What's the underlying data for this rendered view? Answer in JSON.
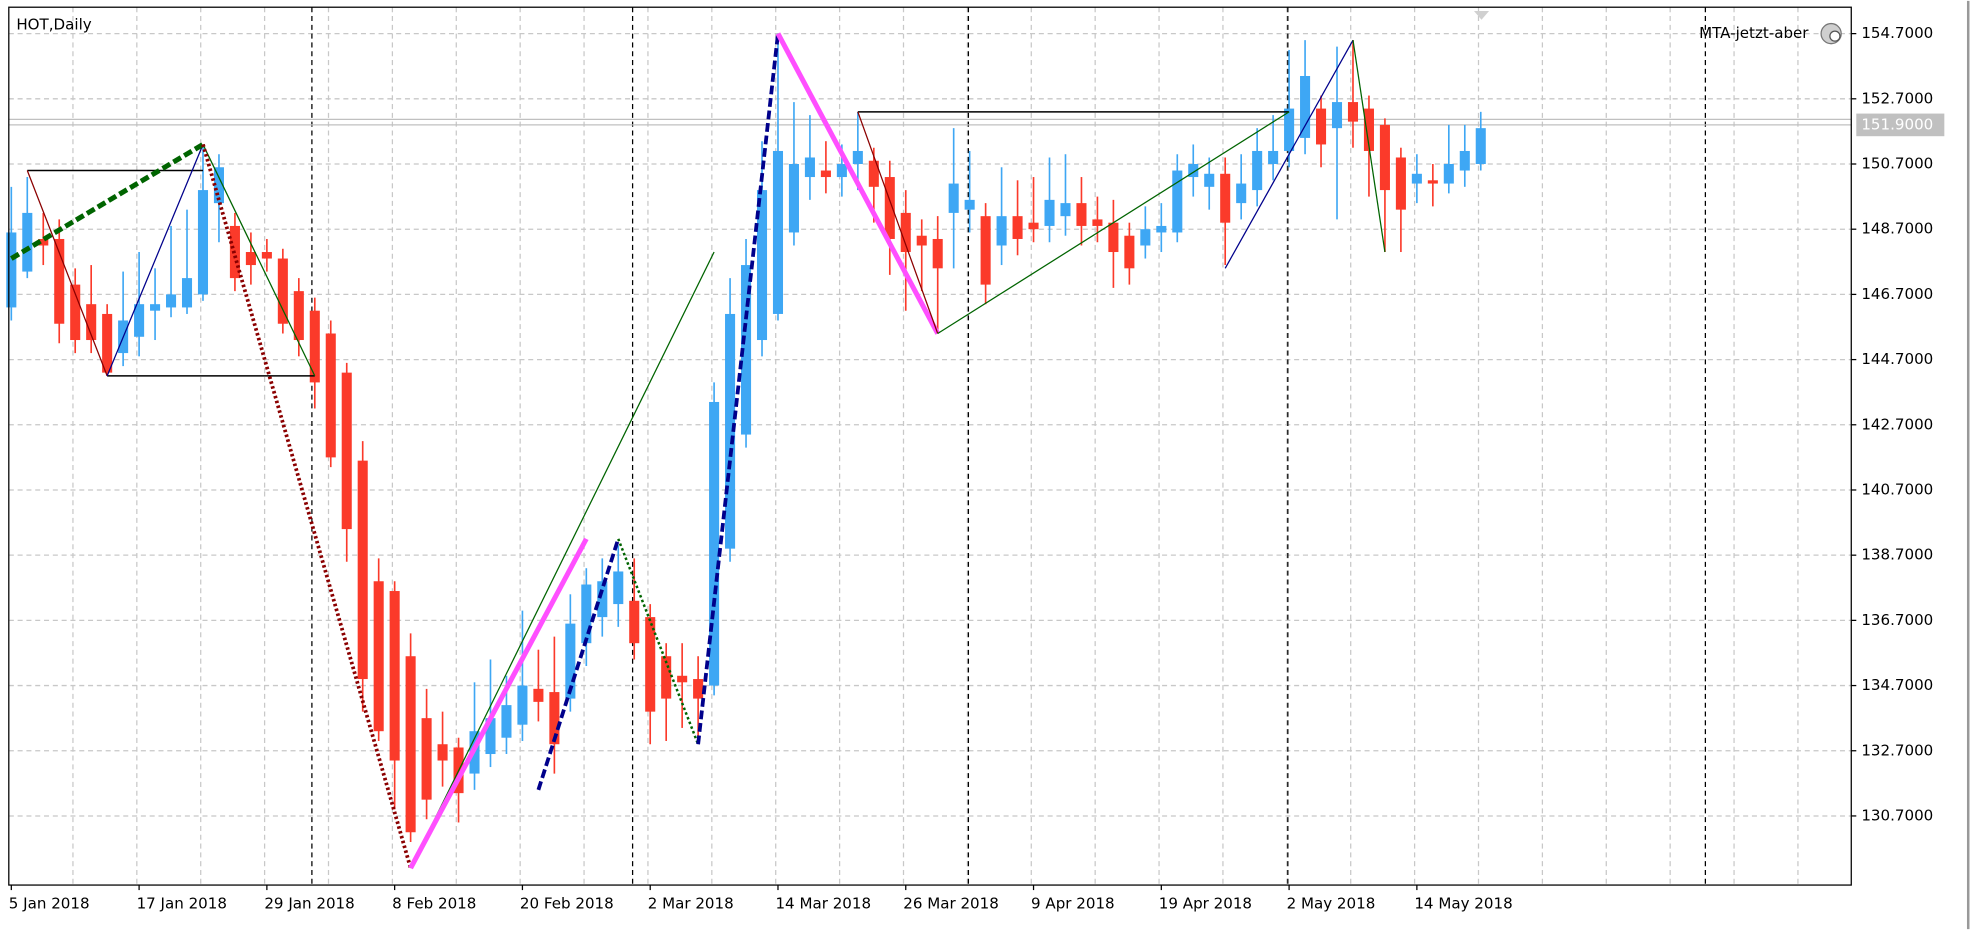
{
  "chart_data": {
    "type": "candlestick",
    "title": "HOT,Daily",
    "indicator": "MTA-jetzt-aber",
    "up_color": "#3ea7f4",
    "down_color": "#fb3a2a",
    "ylim": [
      128.58,
      155.51
    ],
    "yticks": [
      {
        "value": 130.7,
        "label": "130.7000"
      },
      {
        "value": 132.7,
        "label": "132.7000"
      },
      {
        "value": 134.7,
        "label": "134.7000"
      },
      {
        "value": 136.7,
        "label": "136.7000"
      },
      {
        "value": 138.7,
        "label": "138.7000"
      },
      {
        "value": 140.7,
        "label": "140.7000"
      },
      {
        "value": 142.7,
        "label": "142.7000"
      },
      {
        "value": 144.7,
        "label": "144.7000"
      },
      {
        "value": 146.7,
        "label": "146.7000"
      },
      {
        "value": 148.7,
        "label": "148.7000"
      },
      {
        "value": 150.7,
        "label": "150.7000"
      },
      {
        "value": 152.7,
        "label": "152.7000"
      },
      {
        "value": 154.7,
        "label": "154.7000"
      }
    ],
    "grid": true,
    "bid": {
      "value": 151.9,
      "label": "151.9000"
    },
    "ask": 152.07,
    "categories": [
      "5 Jan 2018",
      null,
      null,
      null,
      null,
      null,
      null,
      null,
      "17 Jan 2018",
      null,
      null,
      null,
      null,
      null,
      null,
      null,
      "29 Jan 2018",
      null,
      null,
      null,
      null,
      null,
      null,
      null,
      "8 Feb 2018",
      null,
      null,
      null,
      null,
      null,
      null,
      null,
      "20 Feb 2018",
      null,
      null,
      null,
      null,
      null,
      null,
      null,
      "2 Mar 2018",
      null,
      null,
      null,
      null,
      null,
      null,
      null,
      "14 Mar 2018",
      null,
      null,
      null,
      null,
      null,
      null,
      null,
      "26 Mar 2018",
      null,
      null,
      null,
      null,
      null,
      null,
      null,
      "9 Apr 2018",
      null,
      null,
      null,
      null,
      null,
      null,
      null,
      "19 Apr 2018",
      null,
      null,
      null,
      null,
      null,
      null,
      null,
      "2 May 2018",
      null,
      null,
      null,
      null,
      null,
      null,
      null,
      "14 May 2018",
      null,
      null,
      null,
      null
    ],
    "ohlc": [
      [
        146.3,
        150.0,
        145.9,
        148.6
      ],
      [
        147.4,
        150.3,
        147.2,
        149.2
      ],
      [
        148.4,
        149.2,
        147.6,
        148.2
      ],
      [
        148.4,
        149.0,
        145.2,
        145.8
      ],
      [
        147.0,
        147.5,
        144.9,
        145.3
      ],
      [
        146.4,
        147.6,
        144.9,
        145.3
      ],
      [
        146.1,
        146.4,
        144.2,
        144.3
      ],
      [
        144.9,
        147.4,
        144.5,
        145.9
      ],
      [
        145.4,
        148.0,
        144.8,
        146.4
      ],
      [
        146.2,
        147.5,
        145.3,
        146.4
      ],
      [
        146.3,
        148.8,
        146.0,
        146.7
      ],
      [
        146.3,
        149.3,
        146.1,
        147.2
      ],
      [
        146.7,
        151.3,
        146.5,
        149.9
      ],
      [
        149.5,
        151.0,
        148.3,
        150.6
      ],
      [
        148.8,
        149.2,
        146.8,
        147.2
      ],
      [
        148.0,
        148.6,
        147.0,
        147.6
      ],
      [
        148.0,
        148.4,
        147.4,
        147.8
      ],
      [
        147.8,
        148.1,
        145.5,
        145.8
      ],
      [
        146.8,
        147.2,
        144.8,
        145.3
      ],
      [
        146.2,
        146.6,
        143.2,
        144.0
      ],
      [
        145.5,
        145.9,
        141.4,
        141.7
      ],
      [
        144.3,
        144.6,
        138.5,
        139.5
      ],
      [
        141.6,
        142.2,
        133.9,
        134.9
      ],
      [
        137.9,
        138.6,
        133.0,
        133.3
      ],
      [
        137.6,
        137.9,
        130.9,
        132.4
      ],
      [
        135.6,
        136.3,
        129.9,
        130.2
      ],
      [
        133.7,
        134.6,
        130.6,
        131.2
      ],
      [
        132.9,
        133.9,
        131.6,
        132.4
      ],
      [
        132.8,
        133.1,
        130.5,
        131.4
      ],
      [
        132.0,
        134.8,
        131.5,
        133.3
      ],
      [
        132.6,
        135.5,
        132.2,
        133.7
      ],
      [
        133.1,
        135.0,
        132.6,
        134.1
      ],
      [
        133.5,
        137.0,
        133.0,
        134.7
      ],
      [
        134.6,
        135.8,
        133.6,
        134.2
      ],
      [
        134.5,
        136.2,
        132.0,
        132.9
      ],
      [
        134.3,
        137.5,
        133.9,
        136.6
      ],
      [
        136.0,
        138.3,
        135.3,
        137.8
      ],
      [
        136.8,
        138.6,
        136.2,
        137.9
      ],
      [
        137.2,
        139.0,
        136.5,
        138.2
      ],
      [
        137.3,
        138.6,
        135.5,
        136.0
      ],
      [
        136.8,
        137.2,
        132.9,
        133.9
      ],
      [
        135.6,
        136.0,
        133.0,
        134.3
      ],
      [
        135.0,
        136.0,
        133.4,
        134.8
      ],
      [
        134.9,
        135.6,
        133.0,
        134.3
      ],
      [
        134.7,
        144.0,
        134.4,
        143.4
      ],
      [
        138.9,
        147.2,
        138.5,
        146.1
      ],
      [
        142.4,
        148.4,
        142.0,
        147.6
      ],
      [
        145.3,
        151.4,
        144.8,
        149.9
      ],
      [
        146.1,
        154.7,
        145.9,
        151.1
      ],
      [
        148.6,
        152.6,
        148.2,
        150.7
      ],
      [
        150.3,
        152.2,
        149.6,
        150.9
      ],
      [
        150.5,
        151.4,
        149.8,
        150.3
      ],
      [
        150.3,
        151.3,
        149.7,
        150.7
      ],
      [
        150.7,
        152.3,
        149.9,
        151.1
      ],
      [
        150.8,
        151.2,
        148.9,
        150.0
      ],
      [
        150.3,
        150.8,
        147.3,
        148.4
      ],
      [
        149.2,
        149.9,
        146.2,
        148.0
      ],
      [
        148.5,
        149.0,
        146.8,
        148.2
      ],
      [
        148.4,
        149.1,
        145.5,
        147.5
      ],
      [
        149.2,
        151.8,
        147.5,
        150.1
      ],
      [
        149.3,
        151.1,
        148.6,
        149.6
      ],
      [
        149.1,
        149.5,
        146.4,
        147.0
      ],
      [
        148.2,
        150.6,
        147.6,
        149.1
      ],
      [
        149.1,
        150.2,
        147.9,
        148.4
      ],
      [
        148.9,
        150.3,
        148.3,
        148.7
      ],
      [
        148.8,
        150.9,
        148.3,
        149.6
      ],
      [
        149.1,
        151.0,
        148.5,
        149.5
      ],
      [
        149.5,
        150.3,
        148.2,
        148.8
      ],
      [
        149.0,
        149.7,
        148.3,
        148.8
      ],
      [
        148.9,
        149.6,
        146.9,
        148.0
      ],
      [
        148.5,
        148.9,
        147.0,
        147.5
      ],
      [
        148.2,
        149.4,
        147.8,
        148.7
      ],
      [
        148.6,
        149.5,
        148.0,
        148.8
      ],
      [
        148.6,
        151.0,
        148.3,
        150.5
      ],
      [
        150.3,
        151.3,
        149.7,
        150.7
      ],
      [
        150.0,
        150.9,
        149.3,
        150.4
      ],
      [
        150.4,
        150.9,
        147.6,
        148.9
      ],
      [
        149.5,
        151.0,
        149.0,
        150.1
      ],
      [
        149.9,
        151.8,
        149.4,
        151.1
      ],
      [
        150.7,
        152.2,
        150.2,
        151.1
      ],
      [
        151.1,
        154.2,
        150.6,
        152.4
      ],
      [
        151.5,
        154.5,
        151.0,
        153.4
      ],
      [
        152.4,
        152.8,
        150.6,
        151.3
      ],
      [
        151.8,
        154.3,
        149.0,
        152.6
      ],
      [
        152.6,
        154.5,
        151.2,
        152.0
      ],
      [
        152.4,
        152.8,
        149.7,
        151.1
      ],
      [
        151.9,
        152.1,
        148.0,
        149.9
      ],
      [
        150.9,
        151.2,
        148.0,
        149.3
      ],
      [
        150.1,
        151.0,
        149.5,
        150.4
      ],
      [
        150.2,
        150.7,
        149.4,
        150.1
      ],
      [
        150.1,
        151.9,
        149.8,
        150.7
      ],
      [
        150.5,
        151.9,
        150.0,
        151.1
      ],
      [
        150.7,
        152.3,
        150.5,
        151.8
      ]
    ],
    "lines": [
      {
        "color": "#000000",
        "width": 1.2,
        "style": "solid",
        "points": [
          [
            1,
            150.5
          ],
          [
            12,
            150.5
          ]
        ]
      },
      {
        "color": "#000000",
        "width": 1.2,
        "style": "solid",
        "points": [
          [
            6,
            144.2
          ],
          [
            19,
            144.2
          ]
        ]
      },
      {
        "color": "#8b0000",
        "width": 1,
        "style": "solid",
        "points": [
          [
            1,
            150.5
          ],
          [
            6,
            144.2
          ]
        ]
      },
      {
        "color": "#00008b",
        "width": 1,
        "style": "solid",
        "points": [
          [
            6,
            144.2
          ],
          [
            12,
            151.3
          ]
        ]
      },
      {
        "color": "#006400",
        "width": 1,
        "style": "solid",
        "points": [
          [
            12,
            151.3
          ],
          [
            19,
            144.2
          ]
        ]
      },
      {
        "color": "#006400",
        "width": 4,
        "style": "dash",
        "points": [
          [
            0,
            147.8
          ],
          [
            12,
            151.3
          ]
        ]
      },
      {
        "color": "#8b0000",
        "width": 3,
        "style": "dot",
        "points": [
          [
            12,
            151.3
          ],
          [
            25,
            129.1
          ]
        ]
      },
      {
        "color": "#006400",
        "width": 1,
        "style": "solid",
        "points": [
          [
            25,
            129.1
          ],
          [
            44,
            148.0
          ]
        ]
      },
      {
        "color": "#ff4fff",
        "width": 4,
        "style": "solid",
        "points": [
          [
            25,
            129.1
          ],
          [
            36,
            139.2
          ]
        ]
      },
      {
        "color": "#00008b",
        "width": 3,
        "style": "dash",
        "points": [
          [
            33,
            131.5
          ],
          [
            38,
            139.2
          ]
        ]
      },
      {
        "color": "#006400",
        "width": 2,
        "style": "dot",
        "points": [
          [
            38,
            139.2
          ],
          [
            43,
            132.9
          ]
        ]
      },
      {
        "color": "#00008b",
        "width": 3,
        "style": "dash",
        "points": [
          [
            43,
            132.9
          ],
          [
            48,
            154.7
          ]
        ]
      },
      {
        "color": "#ff4fff",
        "width": 4,
        "style": "solid",
        "points": [
          [
            48,
            154.7
          ],
          [
            58,
            145.5
          ]
        ]
      },
      {
        "color": "#000000",
        "width": 1.2,
        "style": "solid",
        "points": [
          [
            53,
            152.3
          ],
          [
            80,
            152.3
          ]
        ]
      },
      {
        "color": "#8b0000",
        "width": 1,
        "style": "solid",
        "points": [
          [
            53,
            152.3
          ],
          [
            58,
            145.5
          ]
        ]
      },
      {
        "color": "#006400",
        "width": 1,
        "style": "solid",
        "points": [
          [
            58,
            145.5
          ],
          [
            80,
            152.3
          ]
        ]
      },
      {
        "color": "#00008b",
        "width": 1,
        "style": "solid",
        "points": [
          [
            76,
            147.5
          ],
          [
            84,
            154.5
          ]
        ]
      },
      {
        "color": "#006400",
        "width": 1,
        "style": "solid",
        "points": [
          [
            84,
            154.5
          ],
          [
            86,
            148.0
          ]
        ]
      }
    ]
  }
}
